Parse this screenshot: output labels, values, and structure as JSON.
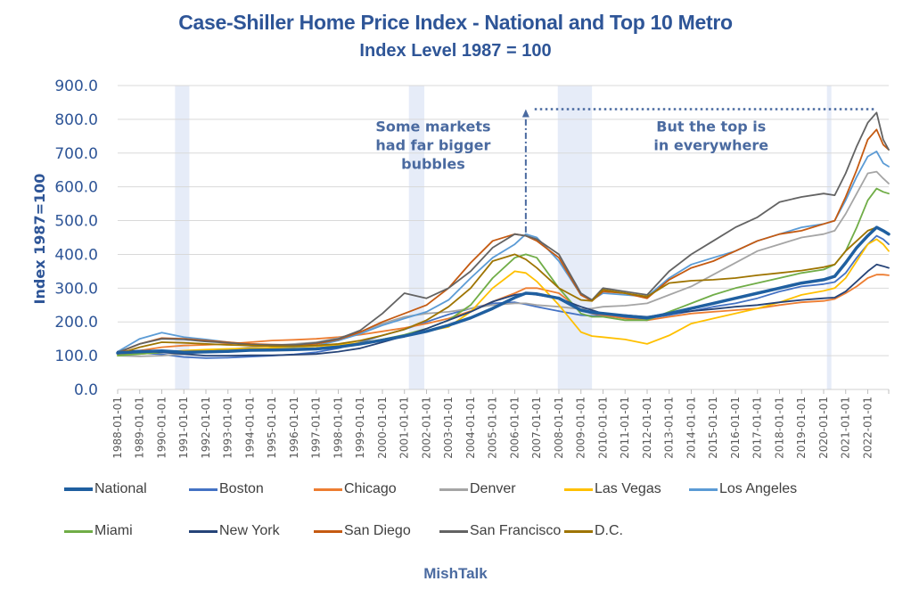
{
  "header": {
    "title": "Case-Shiller Home Price Index - National and Top 10 Metro",
    "subtitle": "Index Level 1987 = 100"
  },
  "footer": {
    "source": "MishTalk"
  },
  "chart_data": {
    "type": "line",
    "title": "Case-Shiller Home Price Index - National and Top 10 Metro",
    "subtitle": "Index Level 1987 = 100",
    "xlabel": "",
    "ylabel": "Index 1987=100",
    "ylim": [
      0,
      900
    ],
    "xlim": [
      1988.0,
      2022.95
    ],
    "grid": true,
    "legend_position": "bottom",
    "y_ticks": [
      "0.0",
      "100.0",
      "200.0",
      "300.0",
      "400.0",
      "500.0",
      "600.0",
      "700.0",
      "800.0",
      "900.0"
    ],
    "x_ticks": [
      "1988-01-01",
      "1989-01-01",
      "1990-01-01",
      "1991-01-01",
      "1992-01-01",
      "1993-01-01",
      "1994-01-01",
      "1995-01-01",
      "1996-01-01",
      "1997-01-01",
      "1998-01-01",
      "1999-01-01",
      "2000-01-01",
      "2001-01-01",
      "2002-01-01",
      "2003-01-01",
      "2004-01-01",
      "2005-01-01",
      "2006-01-01",
      "2007-01-01",
      "2008-01-01",
      "2009-01-01",
      "2010-01-01",
      "2011-01-01",
      "2012-01-01",
      "2013-01-01",
      "2014-01-01",
      "2015-01-01",
      "2016-01-01",
      "2017-01-01",
      "2018-01-01",
      "2019-01-01",
      "2020-01-01",
      "2021-01-01",
      "2022-01-01"
    ],
    "recession_bands": [
      [
        1990.6,
        1991.25
      ],
      [
        2001.2,
        2001.9
      ],
      [
        2007.95,
        2009.5
      ],
      [
        2020.15,
        2020.35
      ]
    ],
    "x": [
      1988,
      1989,
      1990,
      1991,
      1992,
      1993,
      1994,
      1995,
      1996,
      1997,
      1998,
      1999,
      2000,
      2001,
      2002,
      2003,
      2004,
      2005,
      2006,
      2006.5,
      2007,
      2008,
      2009,
      2009.5,
      2010,
      2011,
      2012,
      2013,
      2014,
      2015,
      2016,
      2017,
      2018,
      2019,
      2020,
      2020.5,
      2021,
      2021.5,
      2022,
      2022.4,
      2022.7,
      2022.95
    ],
    "series": [
      {
        "name": "National",
        "color": "#1F5FA0",
        "width": 3.5,
        "values": [
          108,
          112,
          114,
          110,
          111,
          113,
          116,
          117,
          118,
          120,
          126,
          135,
          146,
          158,
          172,
          190,
          212,
          240,
          272,
          285,
          283,
          270,
          235,
          228,
          225,
          218,
          212,
          225,
          240,
          255,
          270,
          285,
          300,
          315,
          325,
          335,
          375,
          420,
          455,
          480,
          470,
          460
        ]
      },
      {
        "name": "Boston",
        "color": "#4472C4",
        "width": 1.8,
        "values": [
          112,
          108,
          104,
          96,
          93,
          94,
          97,
          100,
          104,
          110,
          122,
          140,
          160,
          178,
          200,
          222,
          240,
          255,
          258,
          252,
          245,
          232,
          220,
          218,
          218,
          212,
          210,
          220,
          232,
          245,
          255,
          270,
          290,
          305,
          312,
          318,
          345,
          390,
          430,
          455,
          445,
          430
        ]
      },
      {
        "name": "Chicago",
        "color": "#ED7D31",
        "width": 1.8,
        "values": [
          105,
          115,
          125,
          130,
          132,
          135,
          140,
          145,
          147,
          150,
          155,
          162,
          172,
          182,
          195,
          210,
          232,
          260,
          285,
          300,
          300,
          285,
          235,
          225,
          220,
          210,
          205,
          215,
          225,
          230,
          235,
          240,
          250,
          258,
          262,
          268,
          285,
          305,
          330,
          340,
          340,
          338
        ]
      },
      {
        "name": "Denver",
        "color": "#A5A5A5",
        "width": 1.8,
        "values": [
          100,
          98,
          100,
          105,
          112,
          118,
          125,
          130,
          135,
          140,
          152,
          170,
          195,
          215,
          225,
          230,
          240,
          250,
          255,
          255,
          250,
          245,
          238,
          240,
          245,
          248,
          255,
          280,
          305,
          340,
          375,
          410,
          430,
          450,
          460,
          470,
          520,
          580,
          640,
          645,
          625,
          610
        ]
      },
      {
        "name": "Las Vegas",
        "color": "#FFC000",
        "width": 1.8,
        "values": [
          104,
          105,
          110,
          115,
          118,
          120,
          122,
          123,
          125,
          128,
          132,
          138,
          148,
          160,
          172,
          185,
          230,
          300,
          350,
          345,
          320,
          250,
          170,
          158,
          155,
          148,
          135,
          160,
          195,
          210,
          225,
          240,
          258,
          280,
          292,
          300,
          330,
          380,
          430,
          445,
          430,
          410
        ]
      },
      {
        "name": "Los Angeles",
        "color": "#5B9BD5",
        "width": 1.8,
        "values": [
          112,
          150,
          168,
          155,
          148,
          140,
          133,
          128,
          127,
          130,
          145,
          165,
          190,
          210,
          230,
          265,
          330,
          390,
          430,
          460,
          450,
          380,
          280,
          265,
          285,
          280,
          275,
          330,
          370,
          390,
          410,
          440,
          460,
          480,
          490,
          500,
          560,
          630,
          690,
          705,
          670,
          660
        ]
      },
      {
        "name": "Miami",
        "color": "#70AD47",
        "width": 1.8,
        "values": [
          100,
          105,
          110,
          112,
          113,
          115,
          117,
          118,
          120,
          122,
          128,
          135,
          148,
          162,
          180,
          205,
          250,
          330,
          390,
          400,
          390,
          300,
          225,
          215,
          215,
          205,
          205,
          230,
          255,
          280,
          300,
          315,
          330,
          345,
          355,
          370,
          410,
          480,
          560,
          595,
          585,
          580
        ]
      },
      {
        "name": "New York",
        "color": "#264478",
        "width": 1.8,
        "values": [
          112,
          115,
          110,
          105,
          100,
          100,
          101,
          101,
          103,
          105,
          112,
          122,
          140,
          158,
          180,
          205,
          230,
          260,
          280,
          285,
          280,
          270,
          245,
          235,
          225,
          220,
          215,
          225,
          232,
          238,
          245,
          250,
          258,
          265,
          270,
          272,
          290,
          320,
          350,
          370,
          365,
          360
        ]
      },
      {
        "name": "San Diego",
        "color": "#C55A11",
        "width": 1.8,
        "values": [
          108,
          135,
          152,
          150,
          145,
          140,
          135,
          133,
          132,
          135,
          148,
          170,
          200,
          225,
          250,
          300,
          375,
          440,
          460,
          455,
          440,
          390,
          280,
          262,
          290,
          285,
          270,
          325,
          360,
          380,
          410,
          440,
          460,
          470,
          490,
          500,
          570,
          650,
          740,
          770,
          725,
          710
        ]
      },
      {
        "name": "San Francisco",
        "color": "#636363",
        "width": 1.8,
        "values": [
          110,
          135,
          150,
          148,
          142,
          138,
          133,
          132,
          132,
          138,
          150,
          175,
          225,
          285,
          270,
          300,
          350,
          420,
          460,
          455,
          445,
          400,
          285,
          265,
          300,
          290,
          280,
          350,
          400,
          440,
          480,
          510,
          555,
          570,
          580,
          575,
          640,
          720,
          790,
          820,
          740,
          710
        ]
      },
      {
        "name": "D.C.",
        "color": "#9E7400",
        "width": 1.8,
        "values": [
          105,
          125,
          140,
          138,
          135,
          132,
          130,
          128,
          128,
          130,
          135,
          145,
          160,
          178,
          205,
          245,
          300,
          380,
          400,
          385,
          360,
          300,
          265,
          262,
          295,
          285,
          275,
          315,
          322,
          325,
          330,
          338,
          345,
          352,
          362,
          370,
          410,
          440,
          470,
          480,
          470,
          462
        ]
      }
    ],
    "annotations": [
      {
        "text_lines": [
          "Some markets",
          "had far bigger",
          "bubbles"
        ],
        "at": [
          2002.3,
          770
        ]
      },
      {
        "text_lines": [
          "But the top is",
          "in everywhere"
        ],
        "at": [
          2014.9,
          770
        ]
      },
      {
        "type": "arrow-up-dashdot",
        "x": 2006.5,
        "from": 465,
        "to": 830
      },
      {
        "type": "dotted-horizontal",
        "y": 830,
        "from_x": 2006.9,
        "to_x": 2022.4
      }
    ]
  }
}
